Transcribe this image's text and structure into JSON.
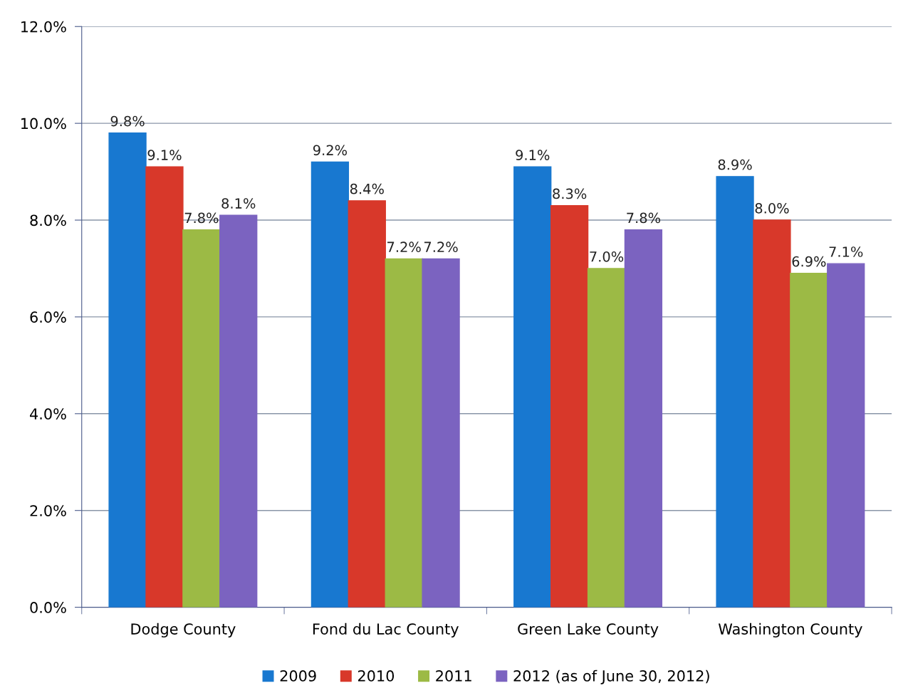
{
  "chart_data": {
    "type": "bar",
    "categories": [
      "Dodge County",
      "Fond du Lac County",
      "Green Lake County",
      "Washington County"
    ],
    "series": [
      {
        "name": "2009",
        "color": "#1878d0",
        "values": [
          9.8,
          9.2,
          9.1,
          8.9
        ],
        "value_labels": [
          "9.8%",
          "9.2%",
          "9.1%",
          "8.9%"
        ]
      },
      {
        "name": "2010",
        "color": "#d8382a",
        "values": [
          9.1,
          8.4,
          8.3,
          8.0
        ],
        "value_labels": [
          "9.1%",
          "8.4%",
          "8.3%",
          "8.0%"
        ]
      },
      {
        "name": "2011",
        "color": "#9cba45",
        "values": [
          7.8,
          7.2,
          7.0,
          6.9
        ],
        "value_labels": [
          "7.8%",
          "7.2%",
          "7.0%",
          "6.9%"
        ]
      },
      {
        "name": "2012 (as of June 30, 2012)",
        "color": "#7b63c0",
        "values": [
          8.1,
          7.2,
          7.8,
          7.1
        ],
        "value_labels": [
          "8.1%",
          "7.2%",
          "7.8%",
          "7.1%"
        ]
      }
    ],
    "ylim": [
      0,
      12
    ],
    "yticks": [
      {
        "value": 0,
        "label": "0.0%"
      },
      {
        "value": 2,
        "label": "2.0%"
      },
      {
        "value": 4,
        "label": "4.0%"
      },
      {
        "value": 6,
        "label": "6.0%"
      },
      {
        "value": 8,
        "label": "8.0%"
      },
      {
        "value": 10,
        "label": "10.0%"
      },
      {
        "value": 12,
        "label": "12.0%"
      }
    ],
    "grid": "y",
    "legend": "bottom"
  }
}
